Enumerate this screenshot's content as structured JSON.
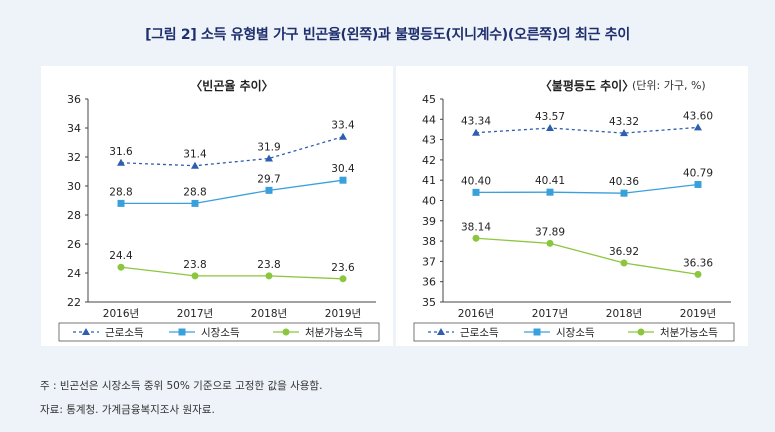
{
  "title": "[그림 2] 소득 유형별 가구 빈곤율(왼쪽)과 불평등도(지니계수)(오른쪽)의 최근 추이",
  "unit_label": "(단위: 가구, %)",
  "footnote": "주 : 빈곤선은 시장소득 중위 50% 기준으로 고정한 값을 사용함.",
  "source": "자료: 통계청. 가계금융복지조사 원자료.",
  "colors": {
    "근로소득": "#2f5db0",
    "시장소득": "#3aa0dc",
    "처분가능소득": "#8cc63f"
  },
  "chart_data": [
    {
      "type": "line",
      "title": "〈빈곤율 추이〉",
      "categories": [
        "2016년",
        "2017년",
        "2018년",
        "2019년"
      ],
      "ylim": [
        22,
        36
      ],
      "yticks": [
        22,
        24,
        26,
        28,
        30,
        32,
        34,
        36
      ],
      "series": [
        {
          "name": "근로소득",
          "values": [
            31.6,
            31.4,
            31.9,
            33.4
          ],
          "labels": [
            "31.6",
            "31.4",
            "31.9",
            "33.4"
          ],
          "marker": "triangle",
          "dash": true
        },
        {
          "name": "시장소득",
          "values": [
            28.8,
            28.8,
            29.7,
            30.4
          ],
          "labels": [
            "28.8",
            "28.8",
            "29.7",
            "30.4"
          ],
          "marker": "square",
          "dash": false
        },
        {
          "name": "처분가능소득",
          "values": [
            24.4,
            23.8,
            23.8,
            23.6
          ],
          "labels": [
            "24.4",
            "23.8",
            "23.8",
            "23.6"
          ],
          "marker": "circle",
          "dash": false
        }
      ],
      "legend": "bottom"
    },
    {
      "type": "line",
      "title": "〈불평등도 추이〉",
      "categories": [
        "2016년",
        "2017년",
        "2018년",
        "2019년"
      ],
      "ylim": [
        35,
        45
      ],
      "yticks": [
        35,
        36,
        37,
        38,
        39,
        40,
        41,
        42,
        43,
        44,
        45
      ],
      "series": [
        {
          "name": "근로소득",
          "values": [
            43.34,
            43.57,
            43.32,
            43.6
          ],
          "labels": [
            "43.34",
            "43.57",
            "43.32",
            "43.60"
          ],
          "marker": "triangle",
          "dash": true
        },
        {
          "name": "시장소득",
          "values": [
            40.4,
            40.41,
            40.36,
            40.79
          ],
          "labels": [
            "40.40",
            "40.41",
            "40.36",
            "40.79"
          ],
          "marker": "square",
          "dash": false
        },
        {
          "name": "처분가능소득",
          "values": [
            38.14,
            37.89,
            36.92,
            36.36
          ],
          "labels": [
            "38.14",
            "37.89",
            "36.92",
            "36.36"
          ],
          "marker": "circle",
          "dash": false
        }
      ],
      "legend": "bottom"
    }
  ]
}
